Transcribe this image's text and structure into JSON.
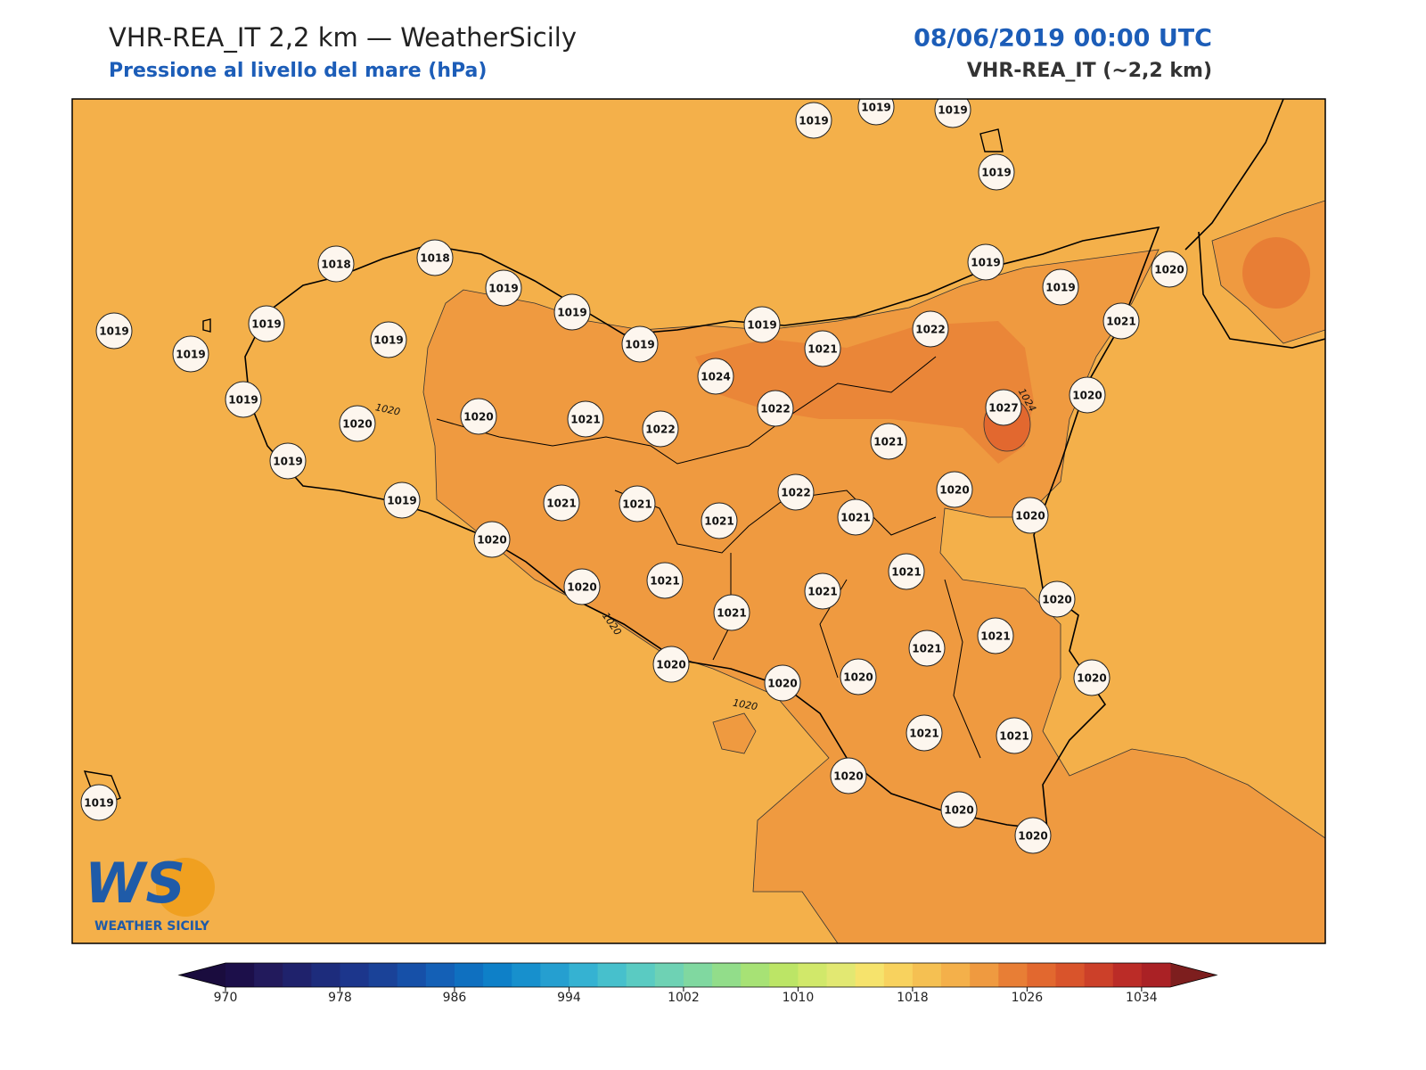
{
  "header": {
    "title": "VHR-REA_IT 2,2 km — WeatherSicily",
    "subtitle": "Pressione al livello del mare (hPa)",
    "datetime": "08/06/2019 00:00 UTC",
    "model": "VHR-REA_IT (~2,2 km)"
  },
  "stations": [
    1019,
    1019,
    1019,
    1019,
    1018,
    1018,
    1019,
    1019,
    1019,
    1019,
    1019,
    1019,
    1019,
    1019,
    1019,
    1019,
    1020,
    1021,
    1022,
    1021,
    1024,
    1022,
    1027,
    1020,
    1019,
    1020,
    1020,
    1021,
    1022,
    1021,
    1019,
    1019,
    1021,
    1021,
    1021,
    1022,
    1021,
    1020,
    1020,
    1020,
    1020,
    1021,
    1021,
    1021,
    1021,
    1020,
    1021,
    1021,
    1020,
    1020,
    1020,
    1020,
    1021,
    1021,
    1020,
    1020,
    1020,
    1019
  ],
  "contour_labels": [
    "1020",
    "1020",
    "1020",
    "1024"
  ],
  "logo": {
    "mark": "WS",
    "name": "WEATHER SICILY"
  },
  "colorbar": {
    "range": [
      970,
      1036
    ],
    "ticks": [
      970,
      978,
      986,
      994,
      1002,
      1010,
      1018,
      1026,
      1034
    ],
    "colors": [
      "#1c0f4a",
      "#221a5c",
      "#1f226c",
      "#1d2c7c",
      "#1c368c",
      "#1a4298",
      "#1650a8",
      "#1460b6",
      "#0f70c0",
      "#0e80c8",
      "#1790cd",
      "#259fd0",
      "#35b2d2",
      "#47c0cc",
      "#5acbc2",
      "#6ed2b4",
      "#80d8a0",
      "#92dd8a",
      "#a7e275",
      "#bce566",
      "#d1e86a",
      "#e2e872",
      "#f6e36c",
      "#f8d25e",
      "#f5c052",
      "#f4b04a",
      "#ef9a40",
      "#e87e35",
      "#e2682f",
      "#d9542b",
      "#cc4029",
      "#bb2c27",
      "#aa2125"
    ],
    "under_color": "#1a0c3e",
    "over_color": "#7d1e1e"
  }
}
